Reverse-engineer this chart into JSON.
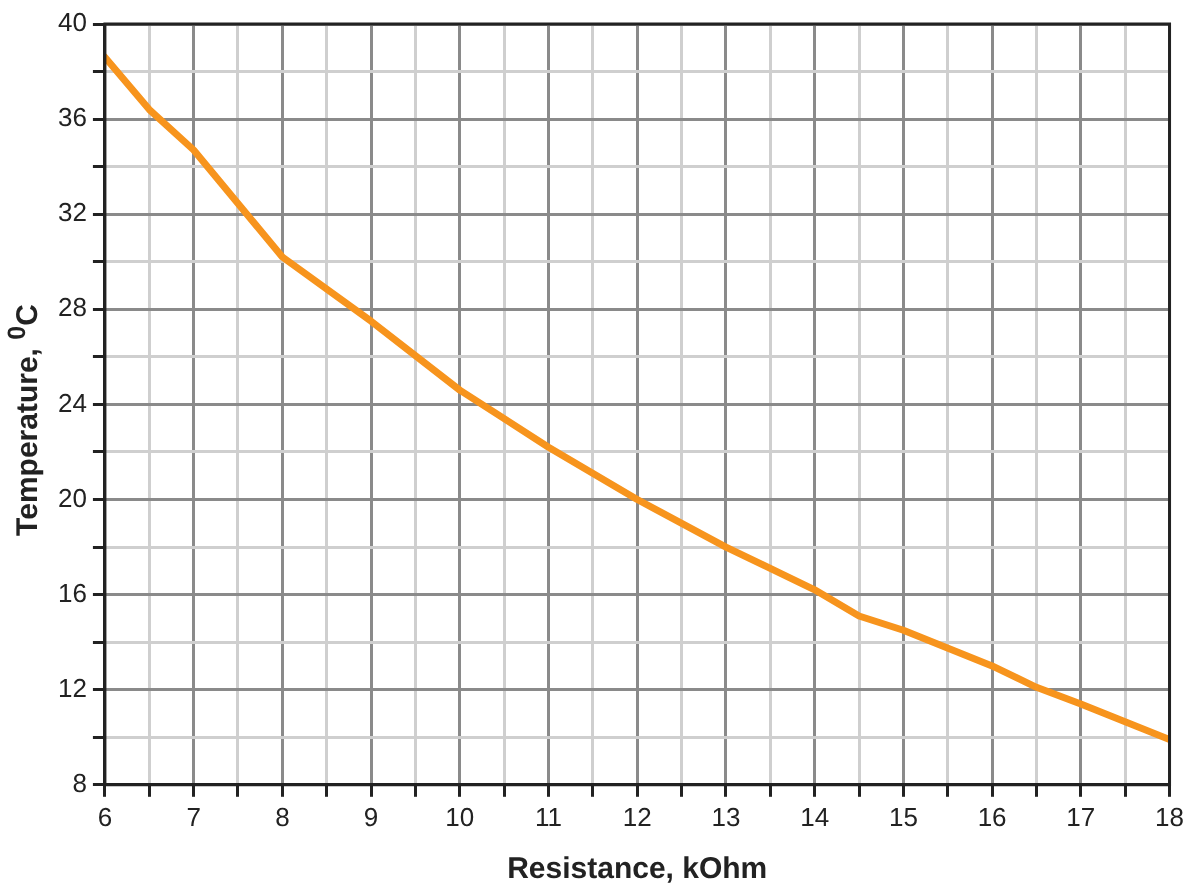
{
  "chart_data": {
    "type": "line",
    "xlabel": "Resistance, kOhm",
    "ylabel": "Temperature, $^{0}$C",
    "series": [
      {
        "color": "#f7941d",
        "x": [
          6,
          6.5,
          7,
          8,
          9,
          10,
          11,
          12,
          13,
          14,
          14.5,
          15,
          16,
          16.5,
          17,
          18
        ],
        "values": [
          38.6,
          36.4,
          34.7,
          30.2,
          27.5,
          24.6,
          22.2,
          20.0,
          18.0,
          16.2,
          15.1,
          14.5,
          13.0,
          12.1,
          11.4,
          9.9
        ]
      }
    ],
    "xlim": [
      6,
      18
    ],
    "xticks": [
      6,
      {
        "value": 6.5,
        "label": null
      },
      7,
      {
        "value": 7.5,
        "label": null
      },
      8,
      {
        "value": 8.5,
        "label": null
      },
      9,
      {
        "value": 9.5,
        "label": null
      },
      10,
      {
        "value": 10.5,
        "label": null
      },
      11,
      {
        "value": 11.5,
        "label": null
      },
      12,
      {
        "value": 12.5,
        "label": null
      },
      13,
      {
        "value": 13.5,
        "label": null
      },
      14,
      {
        "value": 14.5,
        "label": null
      },
      15,
      {
        "value": 15.5,
        "label": null
      },
      16,
      {
        "value": 16.5,
        "label": null
      },
      17,
      {
        "value": 17.5,
        "label": null
      },
      18
    ],
    "ylim": [
      8,
      40
    ],
    "yticks": [
      8,
      {
        "value": 10,
        "label": null
      },
      12,
      {
        "value": 14,
        "label": null
      },
      16,
      {
        "value": 18,
        "label": null
      },
      20,
      {
        "value": 22,
        "label": null
      },
      24,
      {
        "value": 26,
        "label": null
      },
      28,
      {
        "value": 30,
        "label": null
      },
      32,
      {
        "value": 34,
        "label": null
      },
      36,
      {
        "value": 38,
        "label": null
      },
      40
    ],
    "grid": true,
    "legend": false,
    "marker": "none",
    "line_style": "solid"
  }
}
